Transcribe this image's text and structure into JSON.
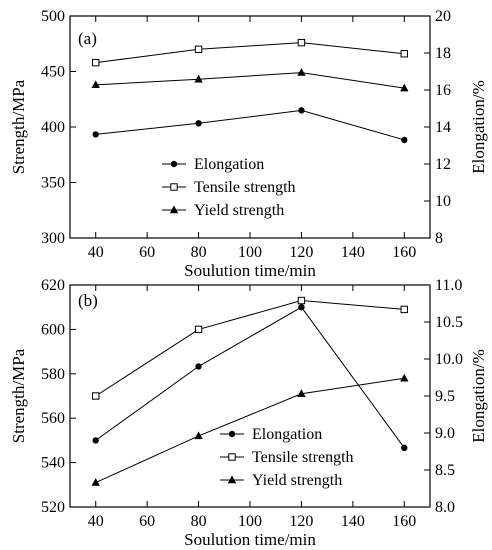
{
  "chart_data": [
    {
      "type": "line",
      "panel_label": "(a)",
      "xlabel": "Soulution time/min",
      "ylabel": "Strength/MPa",
      "y2label": "Elongation/%",
      "xlim": [
        30,
        170
      ],
      "ylim": [
        300,
        500
      ],
      "y2lim": [
        8,
        20
      ],
      "xticks": [
        40,
        60,
        80,
        100,
        120,
        140,
        160
      ],
      "yticks": [
        300,
        350,
        400,
        450,
        500
      ],
      "y2ticks": [
        8,
        10,
        12,
        14,
        16,
        18,
        20
      ],
      "grid": false,
      "legend_position": "center-bottom",
      "series": [
        {
          "name": "Elongation",
          "axis": "right",
          "marker": "dot",
          "x": [
            40,
            80,
            120,
            160
          ],
          "values": [
            13.6,
            14.2,
            14.9,
            13.3
          ]
        },
        {
          "name": "Tensile strength",
          "axis": "left",
          "marker": "square",
          "x": [
            40,
            80,
            120,
            160
          ],
          "values": [
            458,
            470,
            476,
            466
          ]
        },
        {
          "name": "Yield strength",
          "axis": "left",
          "marker": "triangle",
          "x": [
            40,
            80,
            120,
            160
          ],
          "values": [
            438,
            443,
            449,
            435
          ]
        }
      ]
    },
    {
      "type": "line",
      "panel_label": "(b)",
      "xlabel": "Soulution time/min",
      "ylabel": "Strength/MPa",
      "y2label": "Elongation/%",
      "xlim": [
        30,
        170
      ],
      "ylim": [
        520,
        620
      ],
      "y2lim": [
        8.0,
        11.0
      ],
      "xticks": [
        40,
        60,
        80,
        100,
        120,
        140,
        160
      ],
      "yticks": [
        520,
        540,
        560,
        580,
        600,
        620
      ],
      "y2ticks": [
        8.0,
        8.5,
        9.0,
        9.5,
        10.0,
        10.5,
        11.0
      ],
      "y2_tick_decimals": 1,
      "grid": false,
      "legend_position": "bottom-right",
      "series": [
        {
          "name": "Elongation",
          "axis": "right",
          "marker": "dot",
          "x": [
            40,
            80,
            120,
            160
          ],
          "values": [
            8.9,
            9.9,
            10.7,
            8.8
          ]
        },
        {
          "name": "Tensile strength",
          "axis": "left",
          "marker": "square",
          "x": [
            40,
            80,
            120,
            160
          ],
          "values": [
            570,
            600,
            613,
            609
          ]
        },
        {
          "name": "Yield strength",
          "axis": "left",
          "marker": "triangle",
          "x": [
            40,
            80,
            120,
            160
          ],
          "values": [
            531,
            552,
            571,
            578
          ]
        }
      ]
    }
  ]
}
